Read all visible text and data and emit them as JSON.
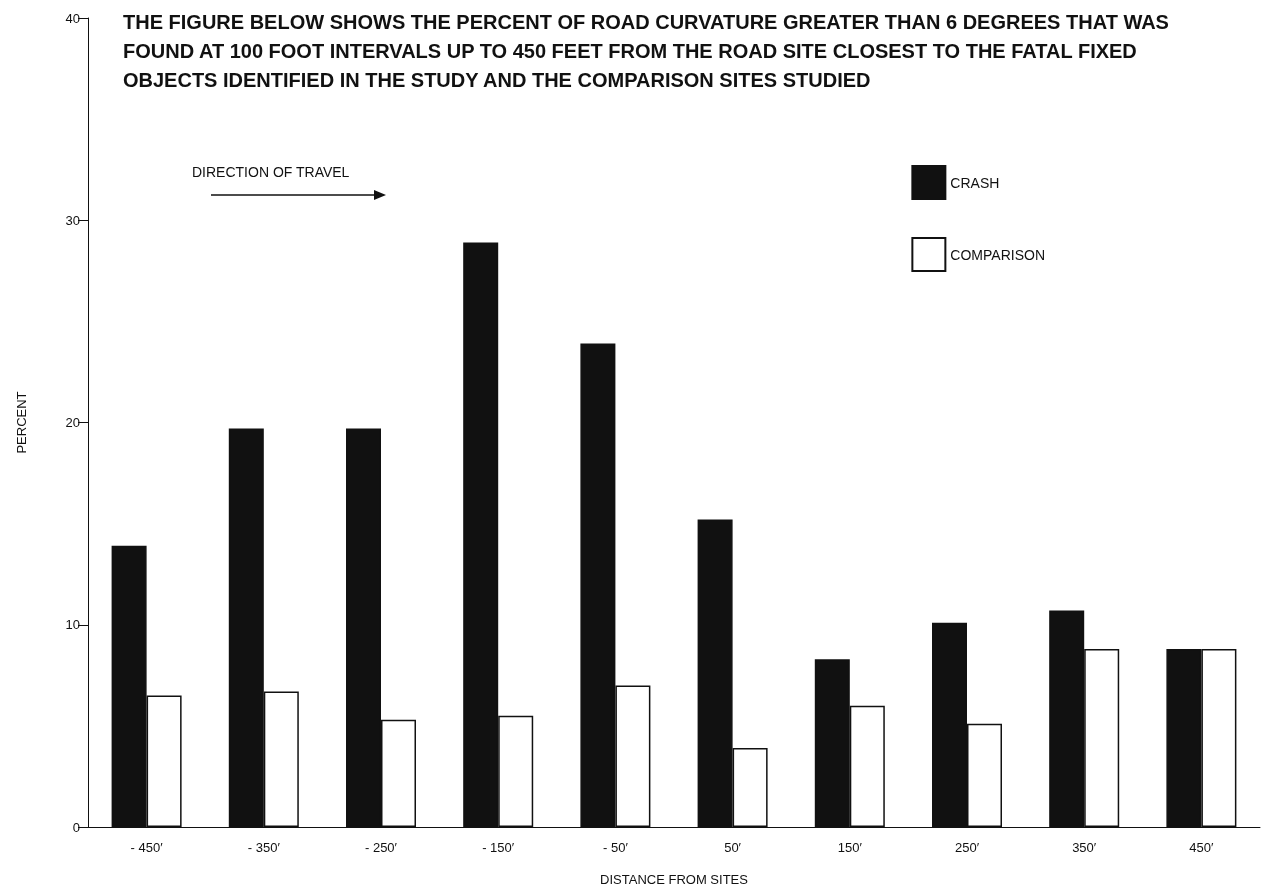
{
  "chart_data": {
    "type": "bar",
    "title": "THE FIGURE BELOW SHOWS THE PERCENT OF ROAD CURVATURE GREATER THAN 6 DEGREES THAT WAS FOUND AT 100 FOOT INTERVALS UP TO 450 FEET FROM THE ROAD SITE CLOSEST TO THE FATAL FIXED OBJECTS IDENTIFIED IN THE STUDY AND THE COMPARISON SITES STUDIED",
    "xlabel": "DISTANCE FROM SITES",
    "ylabel": "PERCENT",
    "categories": [
      "- 450′",
      "- 350′",
      "- 250′",
      "- 150′",
      "- 50′",
      "50′",
      "150′",
      "250′",
      "350′",
      "450′"
    ],
    "series": [
      {
        "name": "CRASH",
        "color": "#111111",
        "values": [
          13.9,
          19.7,
          19.7,
          28.9,
          23.9,
          15.2,
          8.3,
          10.1,
          10.7,
          8.8
        ]
      },
      {
        "name": "COMPARISON",
        "color": "#ffffff",
        "values": [
          6.5,
          6.7,
          5.3,
          5.5,
          7.0,
          3.9,
          6.0,
          5.1,
          8.8,
          8.8
        ]
      }
    ],
    "annotations": [
      "DIRECTION OF TRAVEL"
    ],
    "ylim": [
      0,
      40
    ],
    "yticks": [
      0,
      10,
      20,
      30,
      40
    ],
    "grid": false,
    "legend": "top right"
  }
}
